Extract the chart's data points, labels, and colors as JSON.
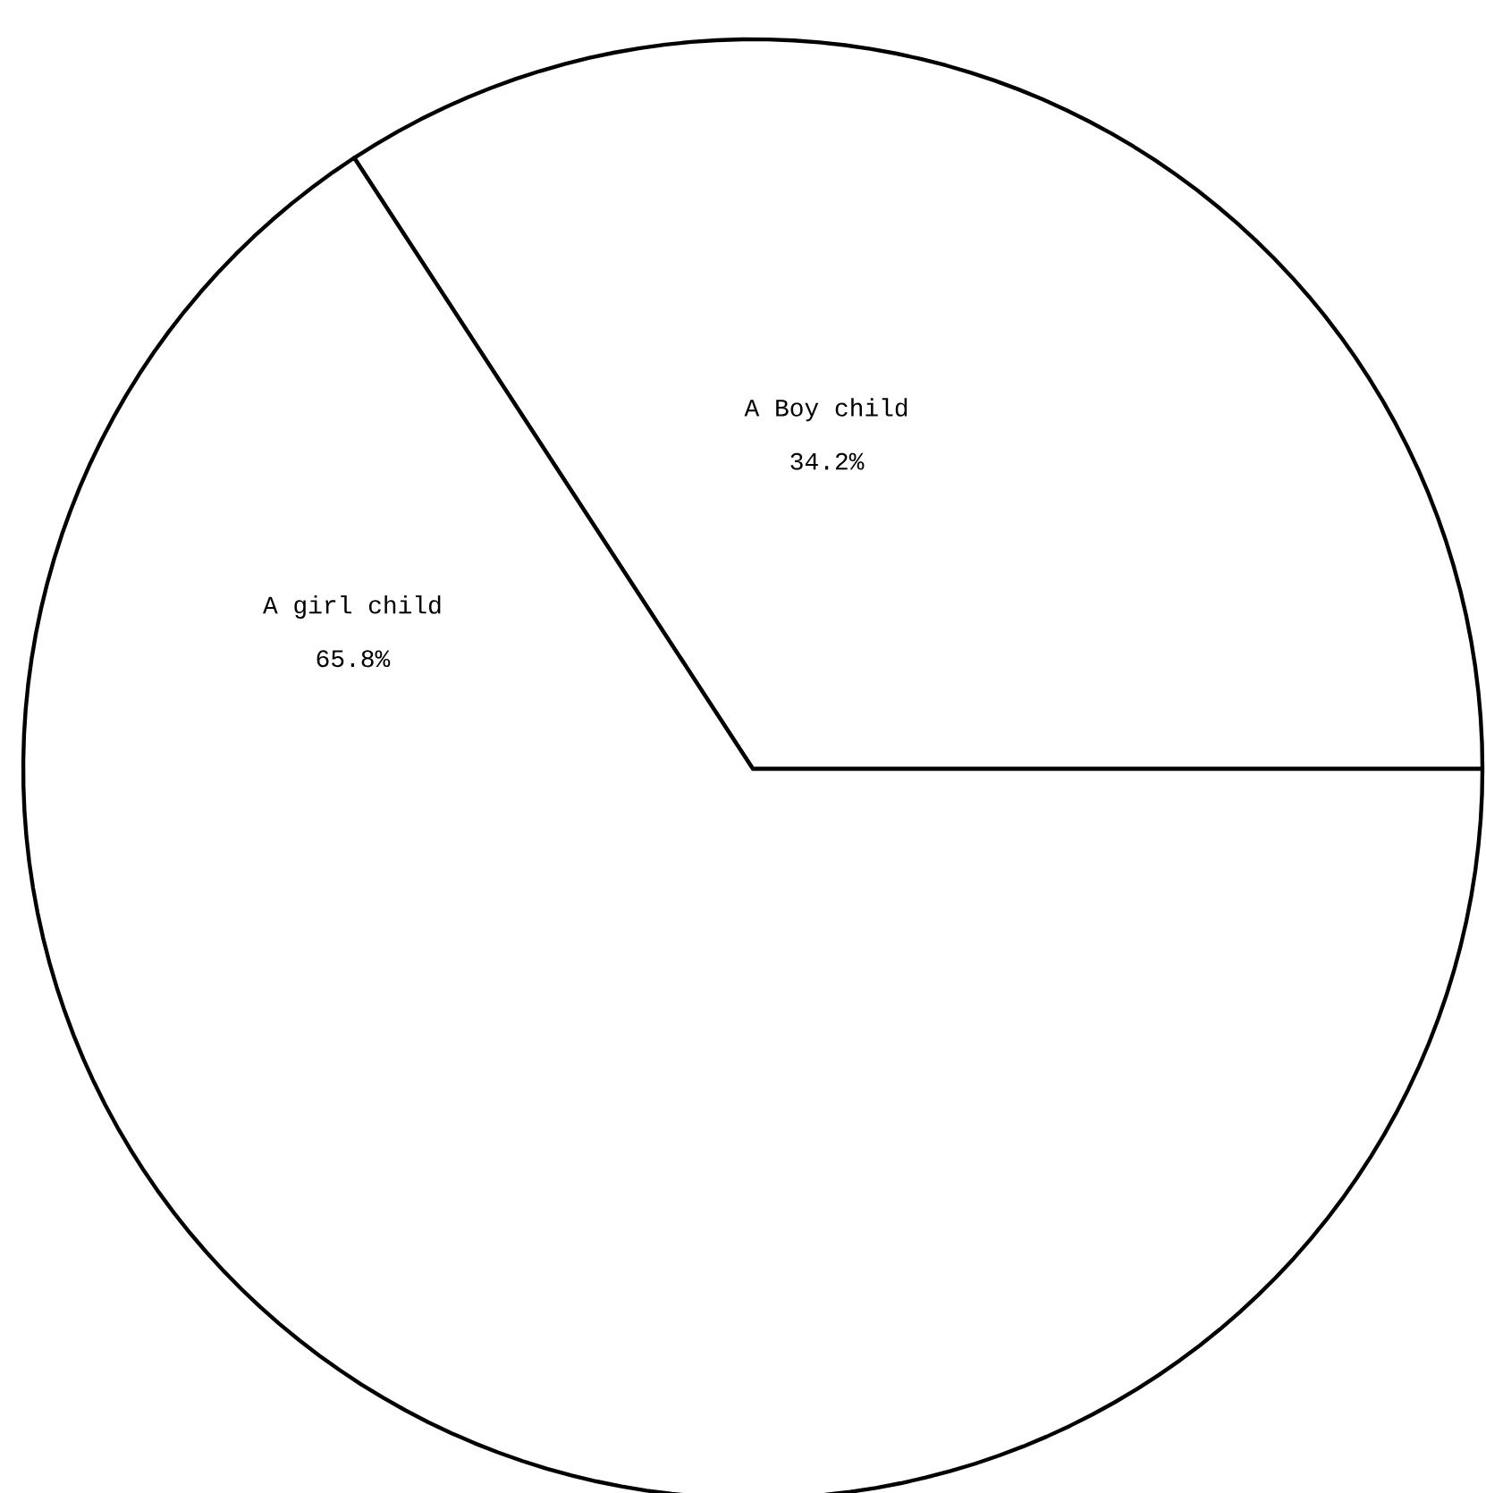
{
  "chart_data": {
    "type": "pie",
    "categories": [
      "A Boy child",
      "A girl child"
    ],
    "values": [
      34.2,
      65.8
    ],
    "value_labels": [
      "34.2%",
      "65.8%"
    ],
    "colors": [
      "#ffffff",
      "#ffffff"
    ]
  }
}
